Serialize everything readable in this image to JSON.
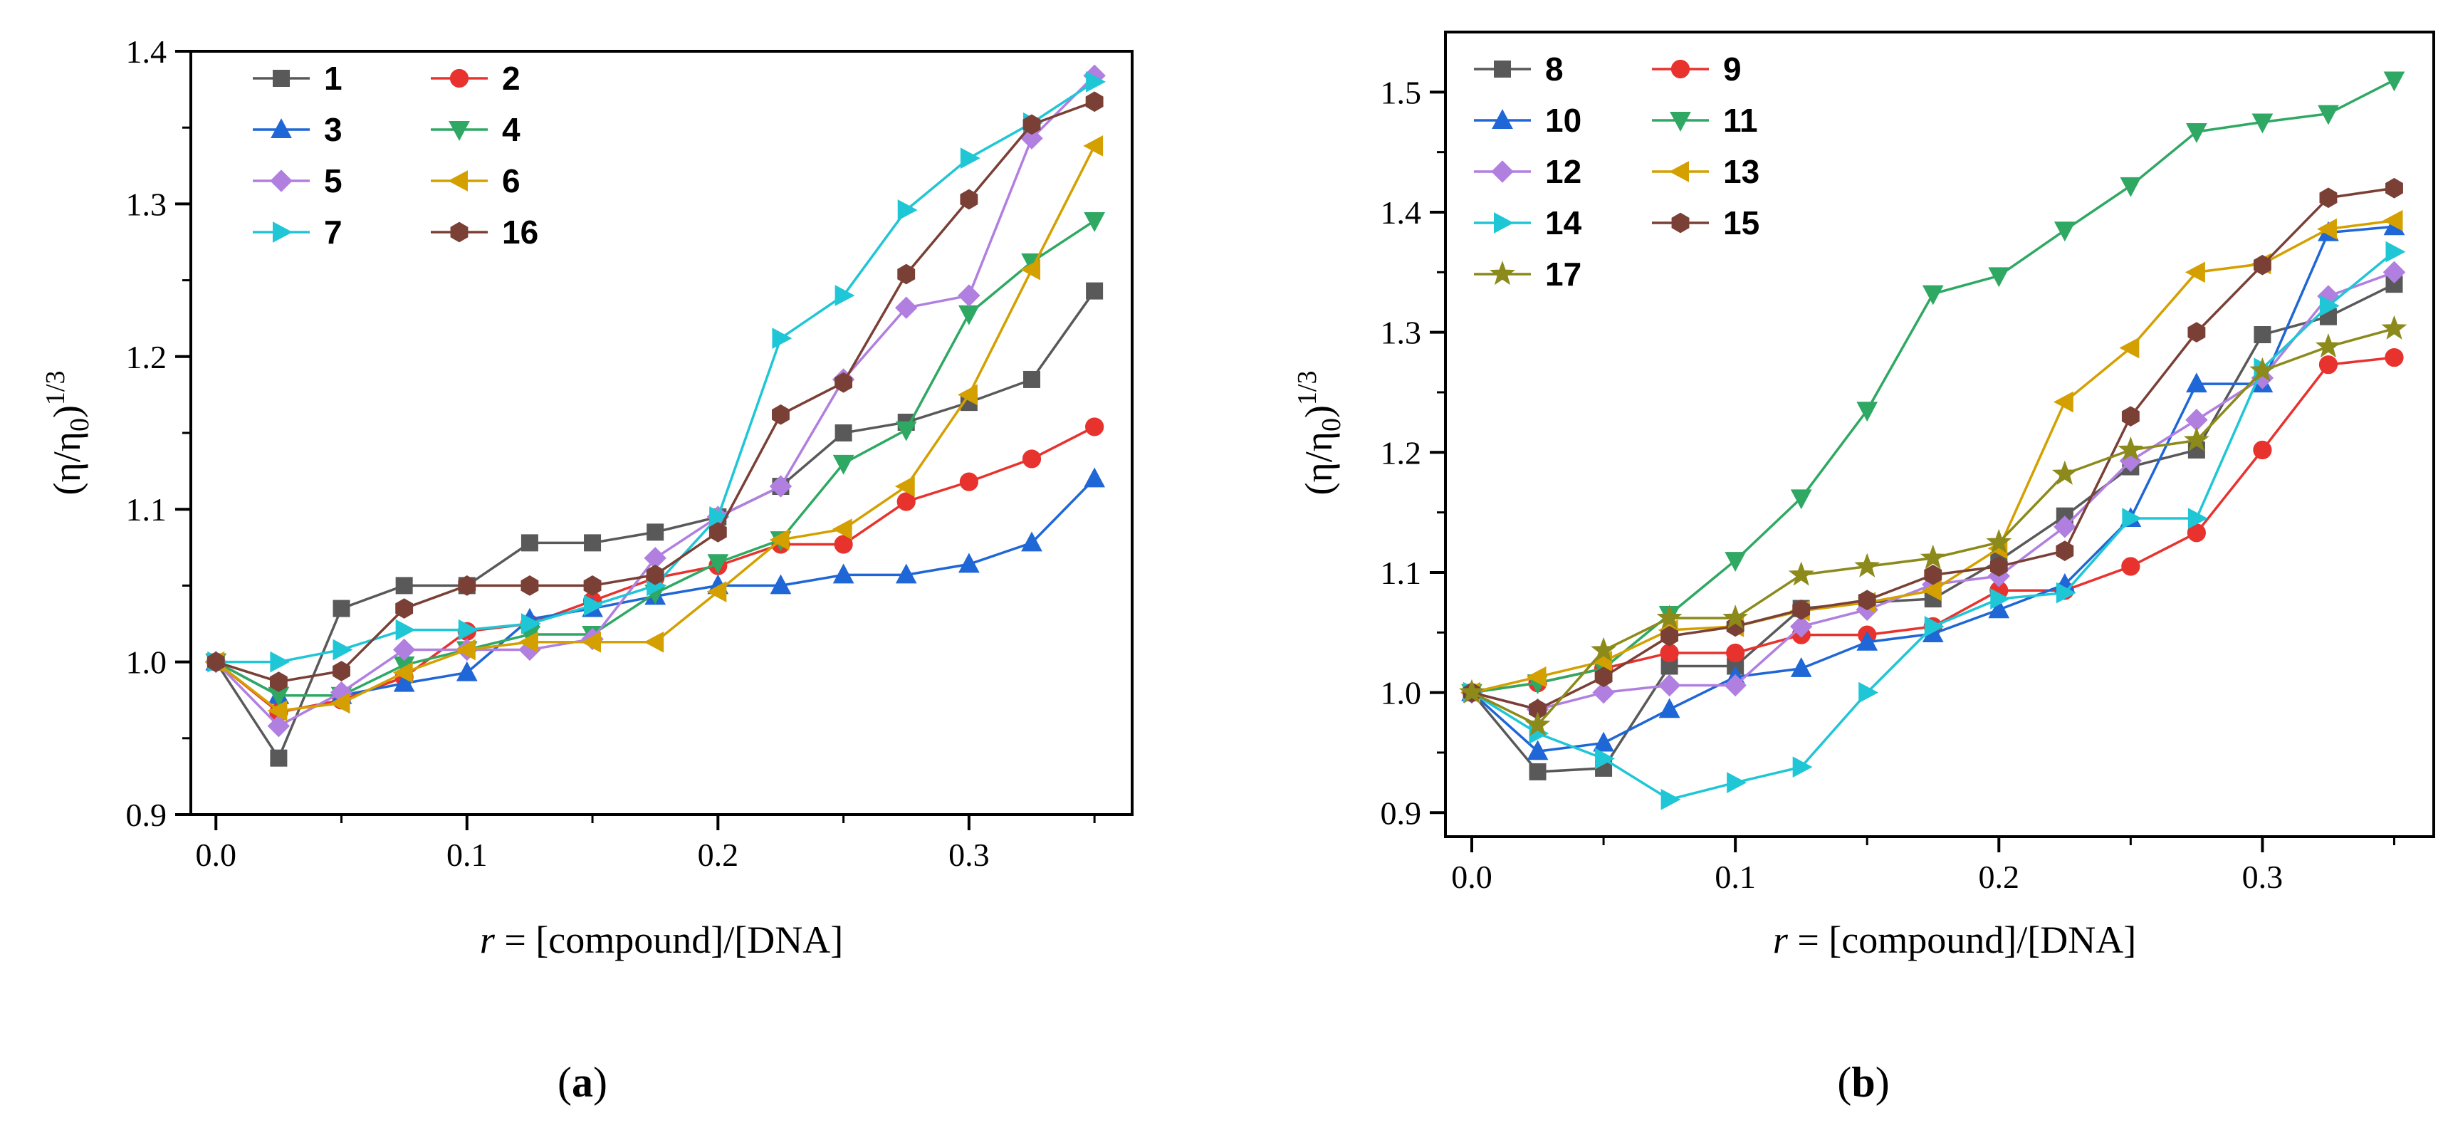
{
  "chart_data": [
    {
      "type": "line",
      "panel_label": "a",
      "xlabel_var": "r",
      "xlabel_rest": " = [compound]/[DNA]",
      "ylabel": "(η/η0)1/3",
      "ylabel_parts": {
        "main": "(η/η",
        "sub": "0",
        "close": ")",
        "sup": "1/3"
      },
      "xlim": [
        -0.01,
        0.365
      ],
      "ylim": [
        0.9,
        1.4
      ],
      "xticks": [
        0.0,
        0.1,
        0.2,
        0.3
      ],
      "xtick_labels": [
        "0.0",
        "0.1",
        "0.2",
        "0.3"
      ],
      "yticks": [
        0.9,
        1.0,
        1.1,
        1.2,
        1.3,
        1.4
      ],
      "ytick_labels": [
        "0.9",
        "1.0",
        "1.1",
        "1.2",
        "1.3",
        "1.4"
      ],
      "legend_position": "top-left",
      "x": [
        0.0,
        0.025,
        0.05,
        0.075,
        0.1,
        0.125,
        0.15,
        0.175,
        0.2,
        0.225,
        0.25,
        0.275,
        0.3,
        0.325,
        0.35
      ],
      "series": [
        {
          "name": "1",
          "color": "#595959",
          "marker": "square",
          "values": [
            1.0,
            0.937,
            1.035,
            1.05,
            1.05,
            1.078,
            1.078,
            1.085,
            1.095,
            1.115,
            1.15,
            1.157,
            1.17,
            1.185,
            1.243
          ]
        },
        {
          "name": "2",
          "color": "#e8322e",
          "marker": "circle",
          "values": [
            1.0,
            0.967,
            0.975,
            0.99,
            1.02,
            1.025,
            1.04,
            1.055,
            1.063,
            1.077,
            1.077,
            1.105,
            1.118,
            1.133,
            1.154
          ]
        },
        {
          "name": "3",
          "color": "#1f66d6",
          "marker": "triangle-up",
          "values": [
            1.0,
            0.978,
            0.978,
            0.986,
            0.993,
            1.028,
            1.035,
            1.043,
            1.05,
            1.05,
            1.057,
            1.057,
            1.064,
            1.078,
            1.12
          ]
        },
        {
          "name": "4",
          "color": "#2ea863",
          "marker": "triangle-down",
          "values": [
            1.0,
            0.978,
            0.978,
            0.998,
            1.008,
            1.018,
            1.018,
            1.045,
            1.065,
            1.08,
            1.13,
            1.152,
            1.228,
            1.262,
            1.289
          ]
        },
        {
          "name": "5",
          "color": "#b07fe0",
          "marker": "diamond",
          "values": [
            1.0,
            0.958,
            0.98,
            1.008,
            1.008,
            1.008,
            1.015,
            1.068,
            1.095,
            1.115,
            1.185,
            1.232,
            1.24,
            1.343,
            1.384
          ]
        },
        {
          "name": "6",
          "color": "#d4a000",
          "marker": "triangle-left",
          "values": [
            1.0,
            0.968,
            0.973,
            0.993,
            1.008,
            1.013,
            1.013,
            1.013,
            1.046,
            1.08,
            1.087,
            1.115,
            1.175,
            1.257,
            1.338
          ]
        },
        {
          "name": "7",
          "color": "#1fc6d6",
          "marker": "triangle-right",
          "values": [
            1.0,
            1.0,
            1.008,
            1.021,
            1.021,
            1.025,
            1.037,
            1.05,
            1.095,
            1.212,
            1.24,
            1.296,
            1.33,
            1.353,
            1.38
          ]
        },
        {
          "name": "16",
          "color": "#7a4036",
          "marker": "hexagon",
          "values": [
            1.0,
            0.987,
            0.994,
            1.035,
            1.05,
            1.05,
            1.05,
            1.057,
            1.085,
            1.162,
            1.183,
            1.254,
            1.303,
            1.352,
            1.367
          ]
        }
      ]
    },
    {
      "type": "line",
      "panel_label": "b",
      "xlabel_var": "r",
      "xlabel_rest": " = [compound]/[DNA]",
      "ylabel": "(η/η0)1/3",
      "ylabel_parts": {
        "main": "(η/η",
        "sub": "0",
        "close": ")",
        "sup": "1/3"
      },
      "xlim": [
        -0.01,
        0.365
      ],
      "ylim": [
        0.88,
        1.55
      ],
      "xticks": [
        0.0,
        0.1,
        0.2,
        0.3
      ],
      "xtick_labels": [
        "0.0",
        "0.1",
        "0.2",
        "0.3"
      ],
      "yticks": [
        0.9,
        1.0,
        1.1,
        1.2,
        1.3,
        1.4,
        1.5
      ],
      "ytick_labels": [
        "0.9",
        "1.0",
        "1.1",
        "1.2",
        "1.3",
        "1.4",
        "1.5"
      ],
      "legend_position": "top-left",
      "x": [
        0.0,
        0.025,
        0.05,
        0.075,
        0.1,
        0.125,
        0.15,
        0.175,
        0.2,
        0.225,
        0.25,
        0.275,
        0.3,
        0.325,
        0.35
      ],
      "series": [
        {
          "name": "8",
          "color": "#595959",
          "marker": "square",
          "values": [
            1.0,
            0.934,
            0.937,
            1.022,
            1.022,
            1.07,
            1.075,
            1.078,
            1.11,
            1.147,
            1.188,
            1.202,
            1.298,
            1.313,
            1.34
          ]
        },
        {
          "name": "9",
          "color": "#e8322e",
          "marker": "circle",
          "values": [
            1.0,
            1.008,
            1.02,
            1.033,
            1.033,
            1.048,
            1.048,
            1.055,
            1.085,
            1.085,
            1.105,
            1.133,
            1.202,
            1.273,
            1.279
          ]
        },
        {
          "name": "10",
          "color": "#1f66d6",
          "marker": "triangle-up",
          "values": [
            1.0,
            0.951,
            0.958,
            0.986,
            1.013,
            1.02,
            1.042,
            1.049,
            1.069,
            1.09,
            1.145,
            1.257,
            1.257,
            1.383,
            1.388
          ]
        },
        {
          "name": "11",
          "color": "#2ea863",
          "marker": "triangle-down",
          "values": [
            1.0,
            1.008,
            1.02,
            1.065,
            1.11,
            1.162,
            1.235,
            1.332,
            1.347,
            1.385,
            1.422,
            1.467,
            1.475,
            1.482,
            1.51
          ]
        },
        {
          "name": "12",
          "color": "#b07fe0",
          "marker": "diamond",
          "values": [
            1.0,
            0.986,
            1.0,
            1.006,
            1.006,
            1.055,
            1.069,
            1.09,
            1.097,
            1.138,
            1.193,
            1.227,
            1.262,
            1.33,
            1.35
          ]
        },
        {
          "name": "13",
          "color": "#d4a000",
          "marker": "triangle-left",
          "values": [
            1.0,
            1.013,
            1.026,
            1.052,
            1.055,
            1.068,
            1.075,
            1.085,
            1.12,
            1.242,
            1.287,
            1.35,
            1.357,
            1.386,
            1.393
          ]
        },
        {
          "name": "14",
          "color": "#1fc6d6",
          "marker": "triangle-right",
          "values": [
            1.0,
            0.966,
            0.945,
            0.911,
            0.925,
            0.938,
            1.0,
            1.055,
            1.078,
            1.083,
            1.145,
            1.145,
            1.27,
            1.322,
            1.367
          ]
        },
        {
          "name": "15",
          "color": "#7a4036",
          "marker": "hexagon",
          "values": [
            1.0,
            0.986,
            1.013,
            1.047,
            1.055,
            1.069,
            1.077,
            1.098,
            1.105,
            1.118,
            1.23,
            1.3,
            1.356,
            1.412,
            1.42
          ]
        },
        {
          "name": "17",
          "color": "#8b8a1a",
          "marker": "star",
          "values": [
            1.0,
            0.973,
            1.035,
            1.062,
            1.062,
            1.098,
            1.105,
            1.112,
            1.125,
            1.182,
            1.202,
            1.21,
            1.268,
            1.288,
            1.303
          ]
        }
      ]
    }
  ]
}
